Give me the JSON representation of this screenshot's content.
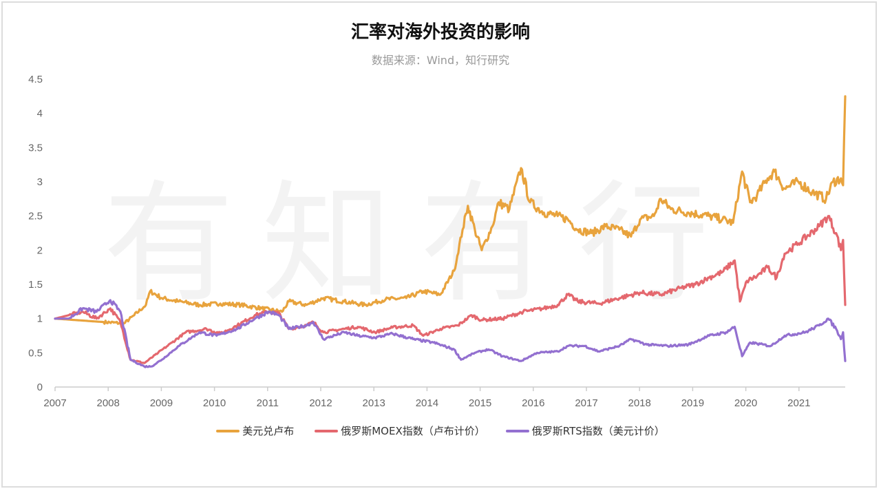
{
  "chart_data": {
    "type": "line",
    "title": "汇率对海外投资的影响",
    "subtitle": "数据来源：Wind，知行研究",
    "watermark": "有知有行",
    "xlabel": "",
    "ylabel": "",
    "xlim": [
      2007,
      2021.87
    ],
    "ylim": [
      0,
      4.5
    ],
    "x_ticks": [
      "2007",
      "2008",
      "2009",
      "2010",
      "2011",
      "2012",
      "2013",
      "2014",
      "2015",
      "2016",
      "2017",
      "2018",
      "2019",
      "2020",
      "2021"
    ],
    "y_ticks": [
      "0",
      "0.5",
      "1",
      "1.5",
      "2",
      "2.5",
      "3",
      "3.5",
      "4",
      "4.5"
    ],
    "grid": false,
    "legend_position": "bottom",
    "series": [
      {
        "name": "美元兑卢布",
        "color": "#E8A33D",
        "points": [
          [
            2007.0,
            1.0
          ],
          [
            2007.91,
            0.95
          ],
          [
            2008.3,
            0.93
          ],
          [
            2008.49,
            1.05
          ],
          [
            2008.71,
            1.2
          ],
          [
            2008.79,
            1.4
          ],
          [
            2009.01,
            1.3
          ],
          [
            2009.33,
            1.25
          ],
          [
            2009.72,
            1.2
          ],
          [
            2010.11,
            1.22
          ],
          [
            2010.5,
            1.2
          ],
          [
            2010.89,
            1.15
          ],
          [
            2011.27,
            1.1
          ],
          [
            2011.4,
            1.25
          ],
          [
            2011.73,
            1.2
          ],
          [
            2012.05,
            1.3
          ],
          [
            2012.44,
            1.25
          ],
          [
            2012.83,
            1.2
          ],
          [
            2013.22,
            1.28
          ],
          [
            2013.61,
            1.3
          ],
          [
            2013.93,
            1.4
          ],
          [
            2014.25,
            1.35
          ],
          [
            2014.51,
            1.7
          ],
          [
            2014.67,
            2.3
          ],
          [
            2014.77,
            2.65
          ],
          [
            2014.9,
            2.3
          ],
          [
            2015.03,
            2.0
          ],
          [
            2015.23,
            2.35
          ],
          [
            2015.35,
            2.7
          ],
          [
            2015.55,
            2.6
          ],
          [
            2015.77,
            3.2
          ],
          [
            2015.94,
            2.7
          ],
          [
            2016.2,
            2.55
          ],
          [
            2016.46,
            2.5
          ],
          [
            2016.65,
            2.45
          ],
          [
            2016.84,
            2.3
          ],
          [
            2017.1,
            2.25
          ],
          [
            2017.36,
            2.35
          ],
          [
            2017.62,
            2.3
          ],
          [
            2017.84,
            2.2
          ],
          [
            2018.01,
            2.45
          ],
          [
            2018.27,
            2.5
          ],
          [
            2018.4,
            2.75
          ],
          [
            2018.59,
            2.6
          ],
          [
            2018.92,
            2.55
          ],
          [
            2019.31,
            2.5
          ],
          [
            2019.56,
            2.45
          ],
          [
            2019.76,
            2.4
          ],
          [
            2019.93,
            3.15
          ],
          [
            2020.08,
            2.7
          ],
          [
            2020.21,
            2.8
          ],
          [
            2020.41,
            3.05
          ],
          [
            2020.54,
            3.15
          ],
          [
            2020.73,
            2.9
          ],
          [
            2020.99,
            3.0
          ],
          [
            2021.25,
            2.85
          ],
          [
            2021.51,
            2.75
          ],
          [
            2021.64,
            3.0
          ],
          [
            2021.79,
            3.05
          ],
          [
            2021.83,
            2.95
          ],
          [
            2021.87,
            4.25
          ]
        ]
      },
      {
        "name": "俄罗斯MOEX指数（卢布计价）",
        "color": "#E4686E",
        "points": [
          [
            2007.0,
            1.0
          ],
          [
            2007.26,
            1.05
          ],
          [
            2007.52,
            1.1
          ],
          [
            2007.78,
            1.0
          ],
          [
            2008.04,
            1.15
          ],
          [
            2008.23,
            0.95
          ],
          [
            2008.42,
            0.4
          ],
          [
            2008.68,
            0.35
          ],
          [
            2008.94,
            0.5
          ],
          [
            2009.2,
            0.65
          ],
          [
            2009.46,
            0.8
          ],
          [
            2009.85,
            0.85
          ],
          [
            2010.11,
            0.78
          ],
          [
            2010.43,
            0.9
          ],
          [
            2010.76,
            1.05
          ],
          [
            2011.02,
            1.1
          ],
          [
            2011.21,
            1.08
          ],
          [
            2011.4,
            0.85
          ],
          [
            2011.73,
            0.9
          ],
          [
            2011.86,
            0.95
          ],
          [
            2012.05,
            0.8
          ],
          [
            2012.44,
            0.85
          ],
          [
            2012.7,
            0.88
          ],
          [
            2013.02,
            0.8
          ],
          [
            2013.35,
            0.87
          ],
          [
            2013.74,
            0.9
          ],
          [
            2013.93,
            0.75
          ],
          [
            2014.25,
            0.85
          ],
          [
            2014.58,
            0.9
          ],
          [
            2014.84,
            1.05
          ],
          [
            2015.03,
            0.98
          ],
          [
            2015.42,
            1.0
          ],
          [
            2015.81,
            1.1
          ],
          [
            2016.2,
            1.15
          ],
          [
            2016.46,
            1.2
          ],
          [
            2016.65,
            1.35
          ],
          [
            2016.84,
            1.25
          ],
          [
            2017.23,
            1.22
          ],
          [
            2017.62,
            1.3
          ],
          [
            2018.01,
            1.38
          ],
          [
            2018.4,
            1.35
          ],
          [
            2018.79,
            1.45
          ],
          [
            2019.05,
            1.5
          ],
          [
            2019.31,
            1.6
          ],
          [
            2019.56,
            1.68
          ],
          [
            2019.79,
            1.85
          ],
          [
            2019.89,
            1.25
          ],
          [
            2020.02,
            1.55
          ],
          [
            2020.21,
            1.62
          ],
          [
            2020.41,
            1.75
          ],
          [
            2020.58,
            1.6
          ],
          [
            2020.73,
            1.95
          ],
          [
            2020.99,
            2.1
          ],
          [
            2021.38,
            2.35
          ],
          [
            2021.55,
            2.5
          ],
          [
            2021.7,
            2.25
          ],
          [
            2021.79,
            2.0
          ],
          [
            2021.83,
            2.15
          ],
          [
            2021.87,
            1.2
          ]
        ]
      },
      {
        "name": "俄罗斯RTS指数（美元计价）",
        "color": "#9370D0",
        "points": [
          [
            2007.0,
            1.0
          ],
          [
            2007.26,
            1.0
          ],
          [
            2007.52,
            1.15
          ],
          [
            2007.78,
            1.1
          ],
          [
            2008.04,
            1.27
          ],
          [
            2008.23,
            1.1
          ],
          [
            2008.42,
            0.4
          ],
          [
            2008.68,
            0.3
          ],
          [
            2008.81,
            0.3
          ],
          [
            2009.01,
            0.4
          ],
          [
            2009.33,
            0.6
          ],
          [
            2009.72,
            0.8
          ],
          [
            2010.04,
            0.75
          ],
          [
            2010.43,
            0.85
          ],
          [
            2010.76,
            1.0
          ],
          [
            2011.02,
            1.1
          ],
          [
            2011.21,
            1.05
          ],
          [
            2011.4,
            0.85
          ],
          [
            2011.73,
            0.9
          ],
          [
            2011.86,
            0.95
          ],
          [
            2012.05,
            0.7
          ],
          [
            2012.44,
            0.8
          ],
          [
            2012.7,
            0.75
          ],
          [
            2013.02,
            0.72
          ],
          [
            2013.35,
            0.78
          ],
          [
            2013.74,
            0.7
          ],
          [
            2014.12,
            0.65
          ],
          [
            2014.51,
            0.55
          ],
          [
            2014.64,
            0.4
          ],
          [
            2014.9,
            0.5
          ],
          [
            2015.16,
            0.55
          ],
          [
            2015.42,
            0.45
          ],
          [
            2015.77,
            0.38
          ],
          [
            2016.07,
            0.5
          ],
          [
            2016.46,
            0.52
          ],
          [
            2016.65,
            0.6
          ],
          [
            2016.97,
            0.6
          ],
          [
            2017.23,
            0.52
          ],
          [
            2017.62,
            0.6
          ],
          [
            2017.84,
            0.7
          ],
          [
            2018.14,
            0.62
          ],
          [
            2018.53,
            0.6
          ],
          [
            2018.92,
            0.62
          ],
          [
            2019.31,
            0.75
          ],
          [
            2019.63,
            0.8
          ],
          [
            2019.79,
            0.88
          ],
          [
            2019.93,
            0.45
          ],
          [
            2020.08,
            0.65
          ],
          [
            2020.47,
            0.6
          ],
          [
            2020.73,
            0.75
          ],
          [
            2021.12,
            0.8
          ],
          [
            2021.38,
            0.9
          ],
          [
            2021.55,
            1.0
          ],
          [
            2021.7,
            0.85
          ],
          [
            2021.79,
            0.7
          ],
          [
            2021.83,
            0.8
          ],
          [
            2021.87,
            0.38
          ]
        ]
      }
    ]
  }
}
